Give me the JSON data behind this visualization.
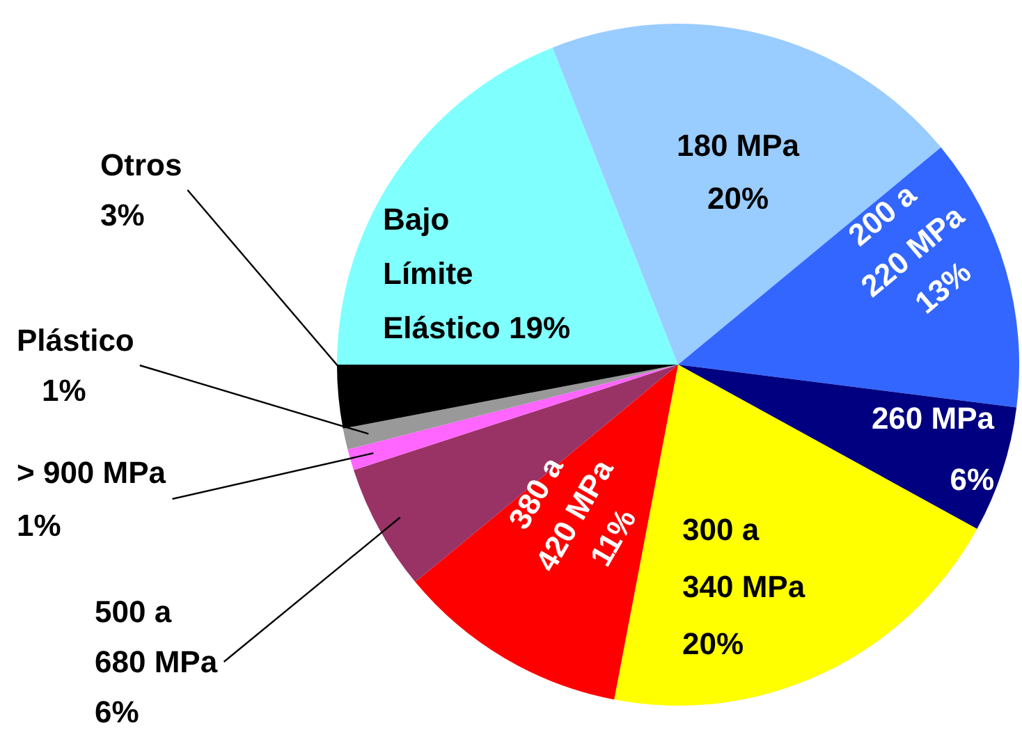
{
  "chart_data": {
    "type": "pie",
    "categories": [
      "Bajo Límite Elástico",
      "180 MPa",
      "200 a 220 MPa",
      "260 MPa",
      "300 a 340 MPa",
      "380 a 420 MPa",
      "500 a 680 MPa",
      "> 900 MPa",
      "Plástico",
      "Otros"
    ],
    "values": [
      19,
      20,
      13,
      6,
      20,
      11,
      6,
      1,
      1,
      3
    ],
    "value_labels": [
      "19%",
      "20%",
      "13%",
      "6%",
      "20%",
      "11%",
      "6%",
      "1%",
      "1%",
      "3%"
    ],
    "colors": [
      "#80ffff",
      "#99ccff",
      "#3366ff",
      "#000080",
      "#ffff00",
      "#ff0000",
      "#993366",
      "#ff66ff",
      "#999999",
      "#000000"
    ]
  }
}
